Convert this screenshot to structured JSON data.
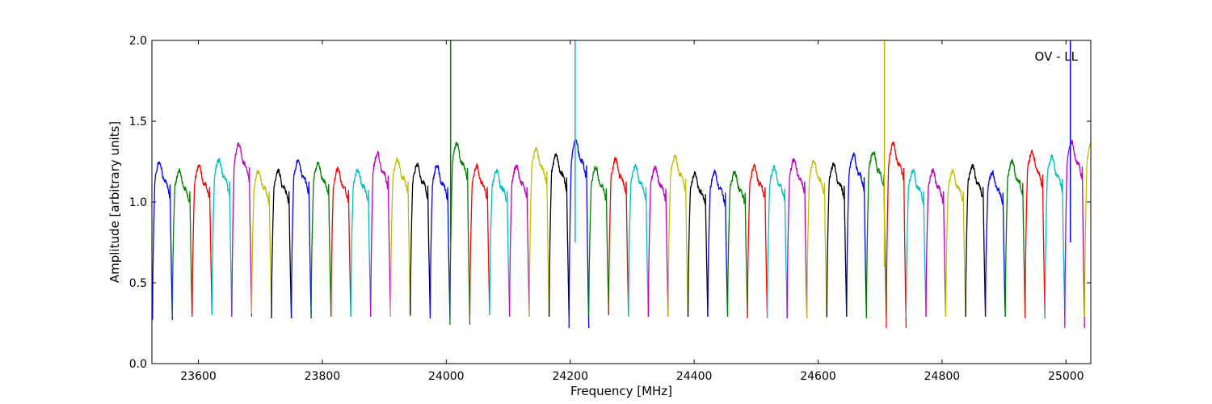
{
  "chart_data": {
    "type": "line",
    "title": "",
    "xlabel": "Frequency [MHz]",
    "ylabel": "Amplitude [arbitrary units]",
    "xlim": [
      23525,
      25040
    ],
    "ylim": [
      0.0,
      2.0
    ],
    "xticks": [
      23600,
      23800,
      24000,
      24200,
      24400,
      24600,
      24800,
      25000
    ],
    "yticks": [
      0.0,
      0.5,
      1.0,
      1.5,
      2.0
    ],
    "ytick_labels": [
      "0.0",
      "0.5",
      "1.0",
      "1.5",
      "2.0"
    ],
    "annotation": "OV - LL",
    "grid": false,
    "color_cycle": [
      "#0000ff",
      "#007f00",
      "#ff0000",
      "#00bfbf",
      "#bf00bf",
      "#bfbf00",
      "#000000"
    ],
    "band_width_mhz": 32,
    "band_starts": [
      23526,
      23558,
      23590,
      23622,
      23654,
      23686,
      23718,
      23750,
      23782,
      23814,
      23846,
      23878,
      23910,
      23942,
      23974,
      24006,
      24038,
      24070,
      24102,
      24134,
      24166,
      24198,
      24230,
      24262,
      24294,
      24326,
      24358,
      24390,
      24422,
      24454,
      24486,
      24518,
      24550,
      24582,
      24614,
      24646,
      24678,
      24710,
      24742,
      24774,
      24806,
      24838,
      24870,
      24902,
      24934,
      24966,
      24998,
      25030
    ],
    "band_peaks": [
      1.26,
      1.21,
      1.24,
      1.28,
      1.38,
      1.21,
      1.21,
      1.28,
      1.26,
      1.22,
      1.22,
      1.32,
      1.28,
      1.25,
      1.24,
      1.38,
      1.24,
      1.21,
      1.24,
      1.35,
      1.31,
      1.4,
      1.23,
      1.28,
      1.24,
      1.23,
      1.3,
      1.19,
      1.2,
      1.2,
      1.24,
      1.23,
      1.28,
      1.27,
      1.25,
      1.31,
      1.33,
      1.38,
      1.21,
      1.21,
      1.21,
      1.24,
      1.2,
      1.27,
      1.33,
      1.3,
      1.39,
      1.39
    ],
    "band_troughs": [
      0.27,
      0.29,
      0.3,
      0.3,
      0.29,
      0.31,
      0.28,
      0.28,
      0.29,
      0.29,
      0.29,
      0.29,
      0.29,
      0.3,
      0.28,
      0.24,
      0.3,
      0.3,
      0.29,
      0.29,
      0.29,
      0.22,
      0.3,
      0.3,
      0.29,
      0.29,
      0.29,
      0.29,
      0.29,
      0.29,
      0.28,
      0.28,
      0.28,
      0.28,
      0.29,
      0.29,
      0.28,
      0.22,
      0.29,
      0.29,
      0.29,
      0.29,
      0.29,
      0.29,
      0.28,
      0.28,
      0.22,
      0.29
    ],
    "spikes": [
      {
        "x": 24007,
        "y_low": 0.75,
        "y_high": 2.0,
        "color": "#007f00"
      },
      {
        "x": 24208,
        "y_low": 0.75,
        "y_high": 2.0,
        "color": "#00bfbf"
      },
      {
        "x": 24707,
        "y_low": 0.6,
        "y_high": 2.0,
        "color": "#bfbf00"
      },
      {
        "x": 25007,
        "y_low": 0.75,
        "y_high": 2.0,
        "color": "#0000ff"
      }
    ]
  }
}
